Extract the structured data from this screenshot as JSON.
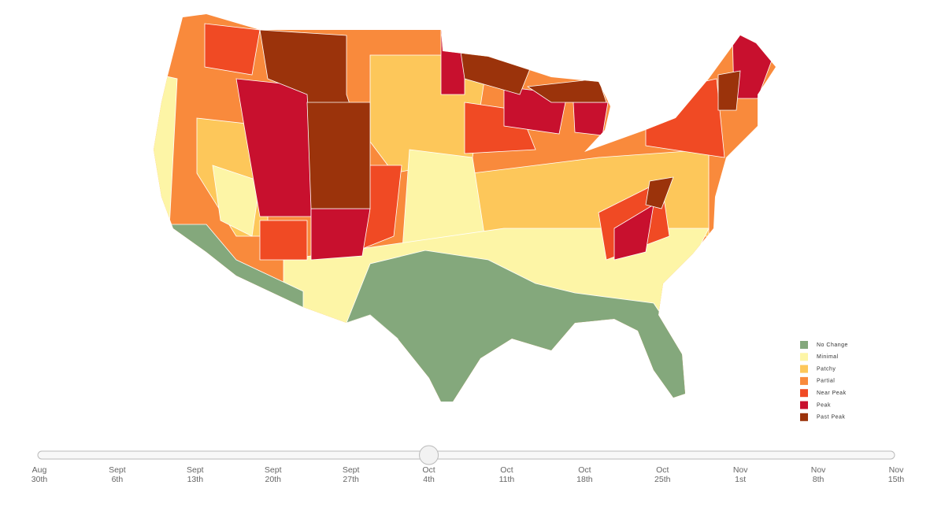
{
  "legend": [
    {
      "label": "No Change",
      "color": "#84a87c"
    },
    {
      "label": "Minimal",
      "color": "#fdf5a6"
    },
    {
      "label": "Patchy",
      "color": "#fdc75a"
    },
    {
      "label": "Partial",
      "color": "#f98a3c"
    },
    {
      "label": "Near Peak",
      "color": "#f04a24"
    },
    {
      "label": "Peak",
      "color": "#c8102e"
    },
    {
      "label": "Past Peak",
      "color": "#9b330b"
    }
  ],
  "slider": {
    "selected": 5,
    "stops": [
      {
        "month": "Aug",
        "day": "30th"
      },
      {
        "month": "Sept",
        "day": "6th"
      },
      {
        "month": "Sept",
        "day": "13th"
      },
      {
        "month": "Sept",
        "day": "20th"
      },
      {
        "month": "Sept",
        "day": "27th"
      },
      {
        "month": "Oct",
        "day": "4th"
      },
      {
        "month": "Oct",
        "day": "11th"
      },
      {
        "month": "Oct",
        "day": "18th"
      },
      {
        "month": "Oct",
        "day": "25th"
      },
      {
        "month": "Nov",
        "day": "1st"
      },
      {
        "month": "Nov",
        "day": "8th"
      },
      {
        "month": "Nov",
        "day": "15th"
      }
    ]
  }
}
